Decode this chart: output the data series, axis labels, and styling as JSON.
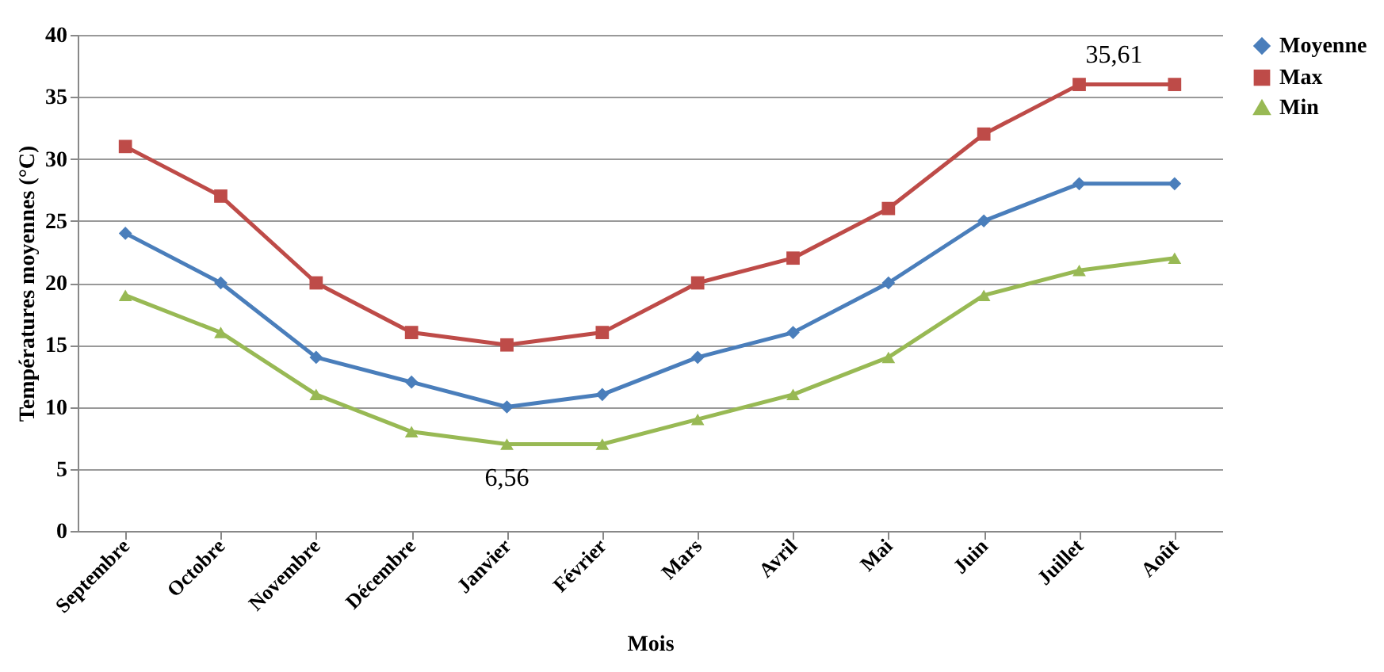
{
  "chart_data": {
    "type": "line",
    "xlabel": "Mois",
    "ylabel": "Températures moyennes (°C)",
    "categories": [
      "Septembre",
      "Octobre",
      "Novembre",
      "Décembre",
      "Janvier",
      "Février",
      "Mars",
      "Avril",
      "Mai",
      "Juin",
      "Juillet",
      "Août"
    ],
    "series": [
      {
        "name": "Moyenne",
        "color": "#4a7ebb",
        "marker": "diamond",
        "values": [
          24,
          20,
          14,
          12,
          10,
          11,
          14,
          16,
          20,
          25,
          28,
          28
        ]
      },
      {
        "name": "Max",
        "color": "#be4b48",
        "marker": "square",
        "values": [
          31,
          27,
          20,
          16,
          15,
          16,
          20,
          22,
          26,
          32,
          36,
          36
        ]
      },
      {
        "name": "Min",
        "color": "#98b954",
        "marker": "triangle",
        "values": [
          19,
          16,
          11,
          8,
          7,
          7,
          9,
          11,
          14,
          19,
          21,
          22
        ]
      }
    ],
    "ylim": [
      0,
      40
    ],
    "yticks": [
      0,
      5,
      10,
      15,
      20,
      25,
      30,
      35,
      40
    ],
    "grid": "y",
    "legend": "right",
    "line_style": "solid",
    "annotations": [
      {
        "text": "35,61",
        "x": "Juillet",
        "y": 35.61
      },
      {
        "text": "6,56",
        "x": "Janvier",
        "y": 6.56
      }
    ]
  }
}
